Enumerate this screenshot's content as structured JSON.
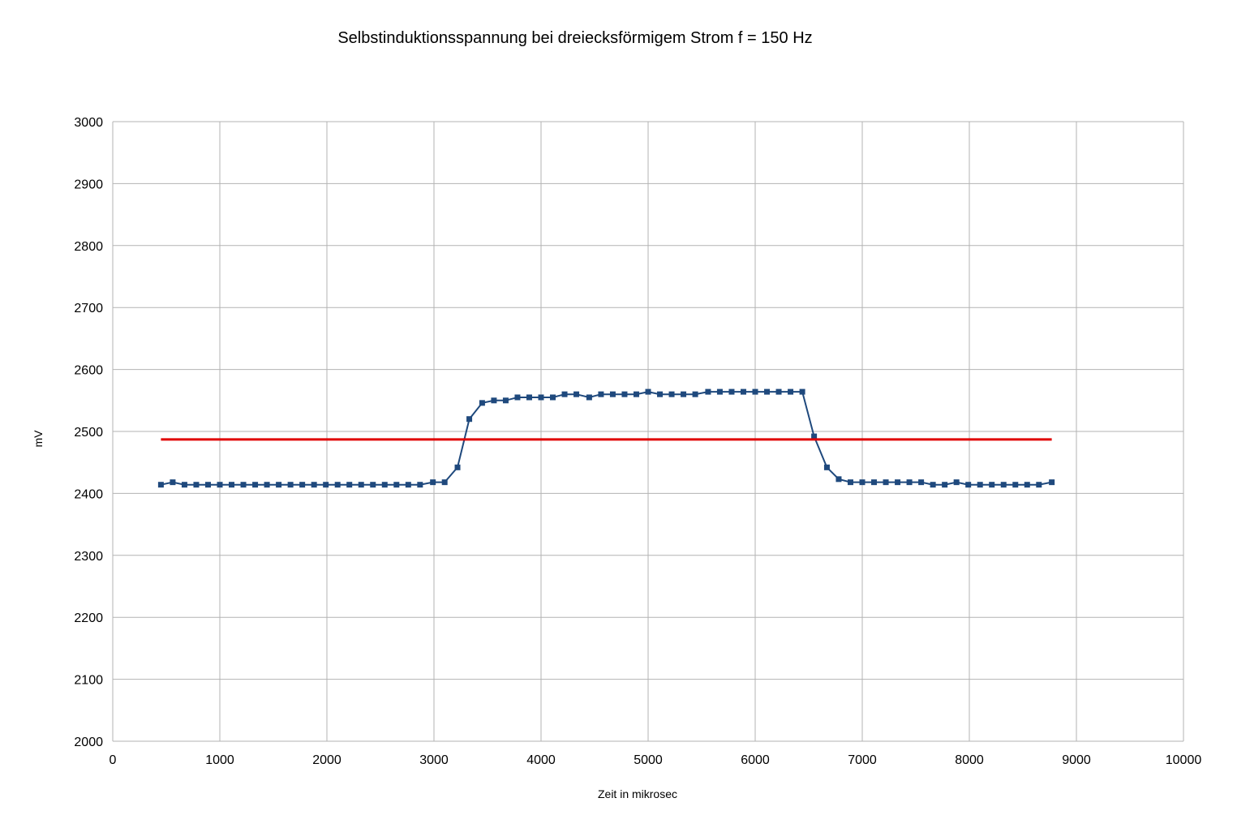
{
  "chart_data": {
    "type": "line",
    "title": "Selbstinduktionsspannung bei dreiecksförmigem Strom f = 150 Hz",
    "xlabel": "Zeit in mikrosec",
    "ylabel": "mV",
    "xlim": [
      0,
      10000
    ],
    "ylim": [
      2000,
      3000
    ],
    "xticks": [
      0,
      1000,
      2000,
      3000,
      4000,
      5000,
      6000,
      7000,
      8000,
      9000,
      10000
    ],
    "yticks": [
      2000,
      2100,
      2200,
      2300,
      2400,
      2500,
      2600,
      2700,
      2800,
      2900,
      3000
    ],
    "grid": true,
    "legend": "none",
    "series": [
      {
        "color": "#1f497d",
        "marker": "square",
        "x": [
          450,
          560,
          670,
          780,
          890,
          1000,
          1110,
          1220,
          1330,
          1440,
          1550,
          1660,
          1770,
          1880,
          1990,
          2100,
          2210,
          2320,
          2430,
          2540,
          2650,
          2760,
          2870,
          2990,
          3100,
          3220,
          3330,
          3450,
          3560,
          3670,
          3780,
          3890,
          4000,
          4110,
          4220,
          4330,
          4450,
          4560,
          4670,
          4780,
          4890,
          5000,
          5110,
          5220,
          5330,
          5440,
          5560,
          5670,
          5780,
          5890,
          6000,
          6110,
          6220,
          6330,
          6440,
          6550,
          6670,
          6780,
          6890,
          7000,
          7110,
          7220,
          7330,
          7440,
          7550,
          7660,
          7770,
          7880,
          7990,
          8100,
          8210,
          8320,
          8430,
          8540,
          8650,
          8770
        ],
        "y": [
          2414,
          2418,
          2414,
          2414,
          2414,
          2414,
          2414,
          2414,
          2414,
          2414,
          2414,
          2414,
          2414,
          2414,
          2414,
          2414,
          2414,
          2414,
          2414,
          2414,
          2414,
          2414,
          2414,
          2418,
          2418,
          2442,
          2520,
          2546,
          2550,
          2550,
          2555,
          2555,
          2555,
          2555,
          2560,
          2560,
          2555,
          2560,
          2560,
          2560,
          2560,
          2564,
          2560,
          2560,
          2560,
          2560,
          2564,
          2564,
          2564,
          2564,
          2564,
          2564,
          2564,
          2564,
          2564,
          2492,
          2442,
          2423,
          2418,
          2418,
          2418,
          2418,
          2418,
          2418,
          2418,
          2414,
          2414,
          2418,
          2414,
          2414,
          2414,
          2414,
          2414,
          2414,
          2414,
          2418
        ]
      },
      {
        "color": "#e00000",
        "marker": "none",
        "x": [
          450,
          8770
        ],
        "y": [
          2487,
          2487
        ]
      }
    ]
  }
}
